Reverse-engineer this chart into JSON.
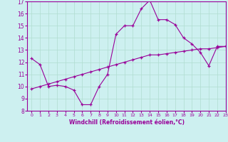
{
  "xlabel": "Windchill (Refroidissement éolien,°C)",
  "bg_color": "#cdf0f0",
  "line_color": "#990099",
  "x_hours": [
    0,
    1,
    2,
    3,
    4,
    5,
    6,
    7,
    8,
    9,
    10,
    11,
    12,
    13,
    14,
    15,
    16,
    17,
    18,
    19,
    20,
    21,
    22,
    23
  ],
  "temp_curve": [
    12.3,
    11.8,
    10.0,
    10.1,
    10.0,
    9.7,
    8.5,
    8.5,
    10.0,
    11.0,
    14.3,
    15.0,
    15.0,
    16.4,
    17.1,
    15.5,
    15.5,
    15.1,
    14.0,
    13.5,
    12.8,
    11.7,
    13.3,
    13.3
  ],
  "linear_curve": [
    9.8,
    10.0,
    10.2,
    10.4,
    10.6,
    10.8,
    11.0,
    11.2,
    11.4,
    11.6,
    11.8,
    12.0,
    12.2,
    12.4,
    12.6,
    12.6,
    12.7,
    12.8,
    12.9,
    13.0,
    13.1,
    13.1,
    13.2,
    13.3
  ],
  "ylim": [
    8,
    17
  ],
  "xlim": [
    -0.5,
    23
  ],
  "yticks": [
    8,
    9,
    10,
    11,
    12,
    13,
    14,
    15,
    16,
    17
  ],
  "xticks": [
    0,
    1,
    2,
    3,
    4,
    5,
    6,
    7,
    8,
    9,
    10,
    11,
    12,
    13,
    14,
    15,
    16,
    17,
    18,
    19,
    20,
    21,
    22,
    23
  ],
  "grid_color": "#b0ddd0",
  "marker": "+"
}
